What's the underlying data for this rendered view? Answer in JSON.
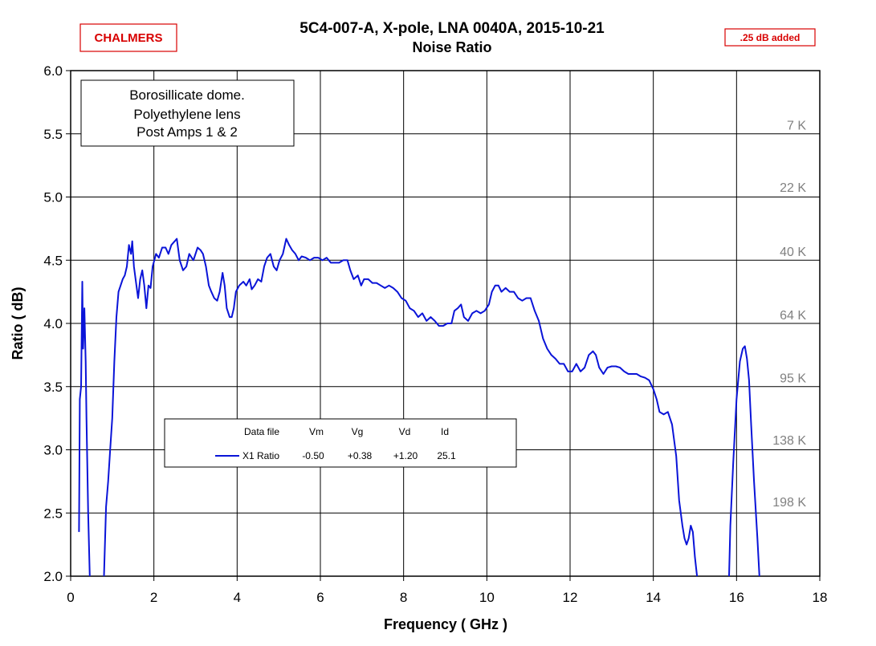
{
  "logo": "CHALMERS",
  "badge": ".25 dB added",
  "colors": {
    "series": "#0a14d8",
    "accent": "#d80000",
    "grid": "#000000",
    "temp_label": "#808080"
  },
  "chart_data": {
    "type": "line",
    "title": "5C4-007-A,  X-pole,  LNA 0040A,  2015-10-21",
    "subtitle": "Noise  Ratio",
    "xlabel": "Frequency  ( GHz )",
    "ylabel": "Ratio  ( dB)",
    "xlim": [
      0,
      18
    ],
    "ylim": [
      2.0,
      6.0
    ],
    "x_ticks": [
      0,
      2,
      4,
      6,
      8,
      10,
      12,
      14,
      16,
      18
    ],
    "x_tick_labels": [
      "0",
      "2",
      "4",
      "6",
      "8",
      "10",
      "12",
      "14",
      "16",
      "18"
    ],
    "y_ticks": [
      2.0,
      2.5,
      3.0,
      3.5,
      4.0,
      4.5,
      5.0,
      5.5,
      6.0
    ],
    "y_tick_labels": [
      "2.0",
      "2.5",
      "3.0",
      "3.5",
      "4.0",
      "4.5",
      "5.0",
      "5.5",
      "6.0"
    ],
    "grid": true,
    "annotation_box": [
      "Borosillicate dome.",
      "Polyethylene lens",
      "Post Amps 1 & 2"
    ],
    "temperature_labels": [
      {
        "y": 5.57,
        "text": "7 K"
      },
      {
        "y": 5.08,
        "text": "22 K"
      },
      {
        "y": 4.57,
        "text": "40 K"
      },
      {
        "y": 4.07,
        "text": "64 K"
      },
      {
        "y": 3.57,
        "text": "95 K"
      },
      {
        "y": 3.08,
        "text": "138 K"
      },
      {
        "y": 2.59,
        "text": "198 K"
      }
    ],
    "legend": {
      "headers": [
        "Data file",
        "Vm",
        "Vg",
        "Vd",
        "Id"
      ],
      "row": [
        "X1 Ratio",
        "-0.50",
        "+0.38",
        "+1.20",
        "25.1"
      ]
    },
    "series": [
      {
        "name": "X1 Ratio",
        "segments": [
          [
            [
              0.2,
              2.35
            ],
            [
              0.22,
              3.4
            ],
            [
              0.25,
              3.5
            ],
            [
              0.28,
              4.33
            ],
            [
              0.3,
              3.8
            ],
            [
              0.33,
              4.12
            ],
            [
              0.36,
              3.7
            ],
            [
              0.38,
              3.25
            ],
            [
              0.42,
              2.5
            ],
            [
              0.46,
              2.0
            ]
          ],
          [
            [
              0.8,
              2.0
            ],
            [
              0.85,
              2.55
            ],
            [
              0.9,
              2.75
            ],
            [
              0.95,
              3.0
            ],
            [
              1.0,
              3.25
            ],
            [
              1.05,
              3.7
            ],
            [
              1.1,
              4.05
            ],
            [
              1.15,
              4.25
            ],
            [
              1.2,
              4.3
            ],
            [
              1.25,
              4.35
            ],
            [
              1.3,
              4.38
            ],
            [
              1.35,
              4.45
            ],
            [
              1.4,
              4.62
            ],
            [
              1.45,
              4.55
            ],
            [
              1.48,
              4.65
            ],
            [
              1.52,
              4.45
            ],
            [
              1.58,
              4.3
            ],
            [
              1.62,
              4.2
            ],
            [
              1.67,
              4.35
            ],
            [
              1.72,
              4.42
            ],
            [
              1.77,
              4.3
            ],
            [
              1.82,
              4.12
            ],
            [
              1.87,
              4.3
            ],
            [
              1.92,
              4.28
            ],
            [
              1.97,
              4.45
            ],
            [
              2.05,
              4.55
            ],
            [
              2.12,
              4.52
            ],
            [
              2.2,
              4.6
            ],
            [
              2.28,
              4.6
            ],
            [
              2.35,
              4.55
            ],
            [
              2.42,
              4.62
            ],
            [
              2.5,
              4.65
            ],
            [
              2.55,
              4.67
            ],
            [
              2.62,
              4.5
            ],
            [
              2.7,
              4.42
            ],
            [
              2.78,
              4.45
            ],
            [
              2.85,
              4.55
            ],
            [
              2.95,
              4.5
            ],
            [
              3.05,
              4.6
            ],
            [
              3.12,
              4.58
            ],
            [
              3.18,
              4.55
            ],
            [
              3.25,
              4.45
            ],
            [
              3.32,
              4.3
            ],
            [
              3.38,
              4.25
            ],
            [
              3.45,
              4.2
            ],
            [
              3.52,
              4.18
            ],
            [
              3.58,
              4.25
            ],
            [
              3.65,
              4.4
            ],
            [
              3.7,
              4.3
            ],
            [
              3.75,
              4.12
            ],
            [
              3.82,
              4.05
            ],
            [
              3.87,
              4.05
            ],
            [
              3.92,
              4.12
            ],
            [
              3.97,
              4.25
            ],
            [
              4.05,
              4.3
            ],
            [
              4.15,
              4.33
            ],
            [
              4.22,
              4.3
            ],
            [
              4.3,
              4.35
            ],
            [
              4.35,
              4.27
            ],
            [
              4.42,
              4.3
            ],
            [
              4.5,
              4.35
            ],
            [
              4.58,
              4.33
            ],
            [
              4.65,
              4.45
            ],
            [
              4.72,
              4.52
            ],
            [
              4.8,
              4.55
            ],
            [
              4.88,
              4.45
            ],
            [
              4.95,
              4.42
            ],
            [
              5.02,
              4.5
            ],
            [
              5.1,
              4.55
            ],
            [
              5.18,
              4.67
            ],
            [
              5.25,
              4.62
            ],
            [
              5.32,
              4.58
            ],
            [
              5.4,
              4.55
            ],
            [
              5.48,
              4.5
            ],
            [
              5.55,
              4.53
            ],
            [
              5.65,
              4.52
            ],
            [
              5.75,
              4.5
            ],
            [
              5.85,
              4.52
            ],
            [
              5.95,
              4.52
            ],
            [
              6.05,
              4.5
            ],
            [
              6.15,
              4.52
            ],
            [
              6.25,
              4.48
            ],
            [
              6.35,
              4.48
            ],
            [
              6.45,
              4.48
            ],
            [
              6.55,
              4.5
            ],
            [
              6.65,
              4.5
            ],
            [
              6.72,
              4.42
            ],
            [
              6.8,
              4.35
            ],
            [
              6.9,
              4.38
            ],
            [
              6.98,
              4.3
            ],
            [
              7.05,
              4.35
            ],
            [
              7.15,
              4.35
            ],
            [
              7.25,
              4.32
            ],
            [
              7.35,
              4.32
            ],
            [
              7.45,
              4.3
            ],
            [
              7.55,
              4.28
            ],
            [
              7.65,
              4.3
            ],
            [
              7.75,
              4.28
            ],
            [
              7.85,
              4.25
            ],
            [
              7.95,
              4.2
            ],
            [
              8.05,
              4.18
            ],
            [
              8.15,
              4.12
            ],
            [
              8.25,
              4.1
            ],
            [
              8.35,
              4.05
            ],
            [
              8.45,
              4.08
            ],
            [
              8.55,
              4.02
            ],
            [
              8.65,
              4.05
            ],
            [
              8.75,
              4.02
            ],
            [
              8.85,
              3.98
            ],
            [
              8.95,
              3.98
            ],
            [
              9.05,
              4.0
            ],
            [
              9.15,
              4.0
            ],
            [
              9.22,
              4.1
            ],
            [
              9.3,
              4.12
            ],
            [
              9.38,
              4.15
            ],
            [
              9.45,
              4.05
            ],
            [
              9.55,
              4.02
            ],
            [
              9.65,
              4.08
            ],
            [
              9.75,
              4.1
            ],
            [
              9.85,
              4.08
            ],
            [
              9.95,
              4.1
            ],
            [
              10.05,
              4.15
            ],
            [
              10.12,
              4.25
            ],
            [
              10.2,
              4.3
            ],
            [
              10.28,
              4.3
            ],
            [
              10.35,
              4.25
            ],
            [
              10.45,
              4.28
            ],
            [
              10.55,
              4.25
            ],
            [
              10.65,
              4.25
            ],
            [
              10.75,
              4.2
            ],
            [
              10.85,
              4.18
            ],
            [
              10.95,
              4.2
            ],
            [
              11.05,
              4.2
            ],
            [
              11.15,
              4.1
            ],
            [
              11.25,
              4.02
            ],
            [
              11.35,
              3.88
            ],
            [
              11.45,
              3.8
            ],
            [
              11.55,
              3.75
            ],
            [
              11.65,
              3.72
            ],
            [
              11.75,
              3.68
            ],
            [
              11.85,
              3.68
            ],
            [
              11.95,
              3.62
            ],
            [
              12.05,
              3.62
            ],
            [
              12.15,
              3.68
            ],
            [
              12.25,
              3.62
            ],
            [
              12.35,
              3.65
            ],
            [
              12.45,
              3.75
            ],
            [
              12.55,
              3.78
            ],
            [
              12.62,
              3.75
            ],
            [
              12.7,
              3.65
            ],
            [
              12.8,
              3.6
            ],
            [
              12.9,
              3.65
            ],
            [
              13.0,
              3.66
            ],
            [
              13.1,
              3.66
            ],
            [
              13.2,
              3.65
            ],
            [
              13.3,
              3.62
            ],
            [
              13.4,
              3.6
            ],
            [
              13.5,
              3.6
            ],
            [
              13.6,
              3.6
            ],
            [
              13.7,
              3.58
            ],
            [
              13.8,
              3.57
            ],
            [
              13.9,
              3.55
            ],
            [
              14.0,
              3.48
            ],
            [
              14.08,
              3.4
            ],
            [
              14.15,
              3.3
            ],
            [
              14.25,
              3.28
            ],
            [
              14.35,
              3.3
            ],
            [
              14.45,
              3.2
            ],
            [
              14.55,
              2.95
            ],
            [
              14.62,
              2.6
            ],
            [
              14.7,
              2.4
            ],
            [
              14.75,
              2.3
            ],
            [
              14.8,
              2.25
            ],
            [
              14.85,
              2.3
            ],
            [
              14.9,
              2.4
            ],
            [
              14.95,
              2.35
            ],
            [
              15.0,
              2.15
            ],
            [
              15.05,
              2.0
            ]
          ],
          [
            [
              15.82,
              2.0
            ],
            [
              15.85,
              2.4
            ],
            [
              15.92,
              2.9
            ],
            [
              16.0,
              3.4
            ],
            [
              16.08,
              3.7
            ],
            [
              16.15,
              3.8
            ],
            [
              16.2,
              3.82
            ],
            [
              16.25,
              3.72
            ],
            [
              16.3,
              3.55
            ],
            [
              16.35,
              3.2
            ],
            [
              16.42,
              2.75
            ],
            [
              16.5,
              2.3
            ],
            [
              16.55,
              2.0
            ]
          ]
        ]
      }
    ]
  }
}
